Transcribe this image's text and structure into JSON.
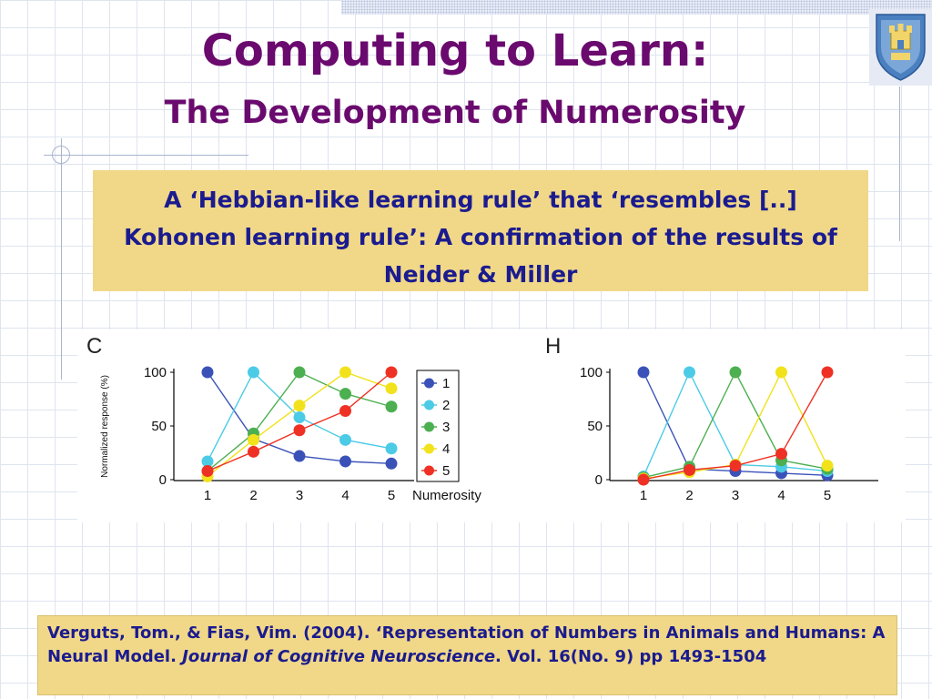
{
  "title": "Computing to Learn:",
  "subtitle": "The Development of Numerosity",
  "quote": "A ‘Hebbian-like learning rule’ that ‘resembles [..] Kohonen learning rule’: A confirmation of the results of Neider & Miller",
  "citation": {
    "lead": "Verguts, Tom., & Fias, Vim.  (2004).  ‘Representation of Numbers in Animals and Humans: A Neural Model.  ",
    "journal": "Journal of Cognitive Neuroscience",
    "tail": ".  Vol. 16(No. 9) pp 1493-1504"
  },
  "chart_data": [
    {
      "type": "line",
      "panel_label": "C",
      "ylabel": "Normalized response (%)",
      "xlabel": "Numerosity",
      "x": [
        1,
        2,
        3,
        4,
        5
      ],
      "ylim": [
        0,
        100
      ],
      "yticks": [
        0,
        50,
        100
      ],
      "legend": "right",
      "series": [
        {
          "name": "1",
          "color": "#3a52b8",
          "values": [
            100,
            38,
            22,
            17,
            15
          ]
        },
        {
          "name": "2",
          "color": "#4ccbe6",
          "values": [
            17,
            100,
            58,
            37,
            29
          ]
        },
        {
          "name": "3",
          "color": "#4caf50",
          "values": [
            8,
            43,
            100,
            80,
            68
          ]
        },
        {
          "name": "4",
          "color": "#f2e21c",
          "values": [
            3,
            37,
            69,
            100,
            85
          ]
        },
        {
          "name": "5",
          "color": "#ee3124",
          "values": [
            8,
            26,
            46,
            64,
            100
          ]
        }
      ]
    },
    {
      "type": "line",
      "panel_label": "H",
      "x": [
        1,
        2,
        3,
        4,
        5
      ],
      "ylim": [
        0,
        100
      ],
      "yticks": [
        0,
        50,
        100
      ],
      "series": [
        {
          "color": "#3a52b8",
          "values": [
            100,
            10,
            8,
            6,
            4
          ]
        },
        {
          "color": "#4ccbe6",
          "values": [
            3,
            100,
            14,
            12,
            8
          ]
        },
        {
          "color": "#4caf50",
          "values": [
            2,
            12,
            100,
            18,
            10
          ]
        },
        {
          "color": "#f2e21c",
          "values": [
            1,
            7,
            14,
            100,
            13
          ]
        },
        {
          "color": "#ee3124",
          "values": [
            0,
            9,
            13,
            24,
            100
          ]
        }
      ]
    }
  ]
}
